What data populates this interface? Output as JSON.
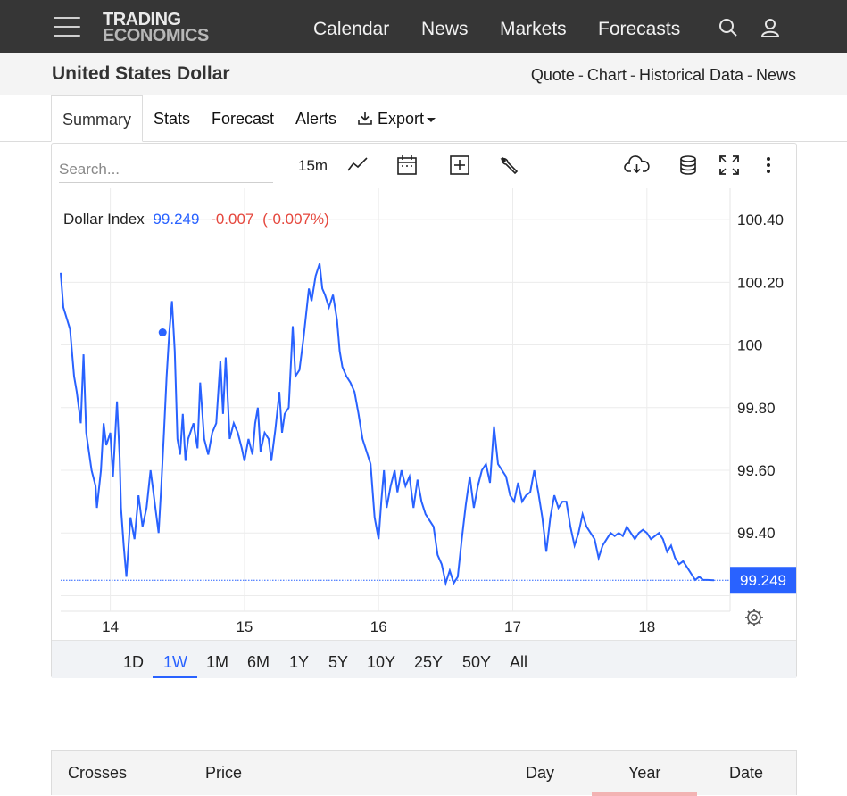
{
  "nav": {
    "logo_line1": "TRADING",
    "logo_line2": "ECONOMICS",
    "links": [
      "Calendar",
      "News",
      "Markets",
      "Forecasts"
    ]
  },
  "header": {
    "title": "United States Dollar",
    "links": [
      "Quote",
      "Chart",
      "Historical Data",
      "News"
    ],
    "separator": "-"
  },
  "tabs": {
    "summary": "Summary",
    "stats": "Stats",
    "forecast": "Forecast",
    "alerts": "Alerts",
    "export": "Export"
  },
  "toolbar": {
    "search_placeholder": "Search...",
    "interval": "15m"
  },
  "chart_data": {
    "type": "line",
    "series_name": "Dollar Index",
    "last_value": "99.249",
    "change": "-0.007",
    "change_pct": "(-0.007%)",
    "line_color": "#2962ff",
    "change_color": "#e5473d",
    "ylim": [
      99.15,
      100.5
    ],
    "yticks": [
      99.4,
      99.6,
      99.8,
      100,
      100.2,
      100.4
    ],
    "ytick_labels": [
      "99.40",
      "99.60",
      "99.80",
      "100",
      "100.20",
      "100.40"
    ],
    "xticks": [
      14,
      15,
      16,
      17,
      18
    ],
    "xtick_labels": [
      "14",
      "15",
      "16",
      "17",
      "18"
    ],
    "xlim": [
      13.63,
      18.62
    ],
    "grid": true,
    "points": [
      [
        13.63,
        100.23
      ],
      [
        13.65,
        100.12
      ],
      [
        13.7,
        100.05
      ],
      [
        13.73,
        99.9
      ],
      [
        13.75,
        99.85
      ],
      [
        13.78,
        99.75
      ],
      [
        13.8,
        99.97
      ],
      [
        13.82,
        99.72
      ],
      [
        13.86,
        99.6
      ],
      [
        13.89,
        99.55
      ],
      [
        13.9,
        99.48
      ],
      [
        13.93,
        99.6
      ],
      [
        13.95,
        99.75
      ],
      [
        13.97,
        99.68
      ],
      [
        14.0,
        99.72
      ],
      [
        14.02,
        99.58
      ],
      [
        14.05,
        99.82
      ],
      [
        14.07,
        99.64
      ],
      [
        14.08,
        99.48
      ],
      [
        14.1,
        99.36
      ],
      [
        14.12,
        99.26
      ],
      [
        14.15,
        99.45
      ],
      [
        14.18,
        99.38
      ],
      [
        14.21,
        99.52
      ],
      [
        14.24,
        99.42
      ],
      [
        14.27,
        99.48
      ],
      [
        14.3,
        99.6
      ],
      [
        14.33,
        99.5
      ],
      [
        14.36,
        99.4
      ],
      [
        14.38,
        99.55
      ],
      [
        14.4,
        99.72
      ],
      [
        14.42,
        99.9
      ],
      [
        14.44,
        100.04
      ],
      [
        14.46,
        100.14
      ],
      [
        14.48,
        99.98
      ],
      [
        14.5,
        99.7
      ],
      [
        14.52,
        99.65
      ],
      [
        14.54,
        99.78
      ],
      [
        14.56,
        99.63
      ],
      [
        14.58,
        99.7
      ],
      [
        14.62,
        99.75
      ],
      [
        14.65,
        99.67
      ],
      [
        14.67,
        99.88
      ],
      [
        14.7,
        99.7
      ],
      [
        14.73,
        99.65
      ],
      [
        14.76,
        99.72
      ],
      [
        14.79,
        99.75
      ],
      [
        14.82,
        99.95
      ],
      [
        14.84,
        99.78
      ],
      [
        14.86,
        99.96
      ],
      [
        14.89,
        99.7
      ],
      [
        14.92,
        99.75
      ],
      [
        14.95,
        99.72
      ],
      [
        14.98,
        99.67
      ],
      [
        15.0,
        99.63
      ],
      [
        15.03,
        99.7
      ],
      [
        15.06,
        99.65
      ],
      [
        15.08,
        99.75
      ],
      [
        15.1,
        99.8
      ],
      [
        15.12,
        99.66
      ],
      [
        15.15,
        99.72
      ],
      [
        15.18,
        99.7
      ],
      [
        15.2,
        99.63
      ],
      [
        15.23,
        99.73
      ],
      [
        15.26,
        99.85
      ],
      [
        15.28,
        99.72
      ],
      [
        15.3,
        99.78
      ],
      [
        15.33,
        99.8
      ],
      [
        15.36,
        100.06
      ],
      [
        15.38,
        99.9
      ],
      [
        15.41,
        99.92
      ],
      [
        15.44,
        100.02
      ],
      [
        15.48,
        100.18
      ],
      [
        15.5,
        100.14
      ],
      [
        15.53,
        100.22
      ],
      [
        15.56,
        100.26
      ],
      [
        15.58,
        100.18
      ],
      [
        15.6,
        100.16
      ],
      [
        15.63,
        100.12
      ],
      [
        15.66,
        100.16
      ],
      [
        15.69,
        100.08
      ],
      [
        15.71,
        99.98
      ],
      [
        15.73,
        99.93
      ],
      [
        15.76,
        99.9
      ],
      [
        15.79,
        99.88
      ],
      [
        15.82,
        99.85
      ],
      [
        15.85,
        99.78
      ],
      [
        15.88,
        99.7
      ],
      [
        15.91,
        99.66
      ],
      [
        15.94,
        99.62
      ],
      [
        15.97,
        99.45
      ],
      [
        16.0,
        99.38
      ],
      [
        16.02,
        99.5
      ],
      [
        16.04,
        99.6
      ],
      [
        16.06,
        99.48
      ],
      [
        16.09,
        99.55
      ],
      [
        16.12,
        99.6
      ],
      [
        16.14,
        99.53
      ],
      [
        16.17,
        99.6
      ],
      [
        16.2,
        99.55
      ],
      [
        16.23,
        99.58
      ],
      [
        16.26,
        99.48
      ],
      [
        16.29,
        99.57
      ],
      [
        16.32,
        99.5
      ],
      [
        16.35,
        99.46
      ],
      [
        16.38,
        99.44
      ],
      [
        16.41,
        99.42
      ],
      [
        16.44,
        99.33
      ],
      [
        16.47,
        99.3
      ],
      [
        16.5,
        99.24
      ],
      [
        16.53,
        99.28
      ],
      [
        16.56,
        99.24
      ],
      [
        16.59,
        99.26
      ],
      [
        16.62,
        99.38
      ],
      [
        16.65,
        99.49
      ],
      [
        16.68,
        99.58
      ],
      [
        16.71,
        99.48
      ],
      [
        16.74,
        99.55
      ],
      [
        16.77,
        99.6
      ],
      [
        16.8,
        99.62
      ],
      [
        16.83,
        99.56
      ],
      [
        16.86,
        99.74
      ],
      [
        16.89,
        99.62
      ],
      [
        16.92,
        99.6
      ],
      [
        16.95,
        99.58
      ],
      [
        16.98,
        99.52
      ],
      [
        17.01,
        99.5
      ],
      [
        17.04,
        99.56
      ],
      [
        17.07,
        99.5
      ],
      [
        17.1,
        99.52
      ],
      [
        17.13,
        99.53
      ],
      [
        17.16,
        99.6
      ],
      [
        17.19,
        99.53
      ],
      [
        17.22,
        99.45
      ],
      [
        17.25,
        99.34
      ],
      [
        17.28,
        99.45
      ],
      [
        17.31,
        99.52
      ],
      [
        17.34,
        99.48
      ],
      [
        17.37,
        99.5
      ],
      [
        17.4,
        99.5
      ],
      [
        17.43,
        99.42
      ],
      [
        17.46,
        99.36
      ],
      [
        17.49,
        99.4
      ],
      [
        17.52,
        99.46
      ],
      [
        17.55,
        99.42
      ],
      [
        17.58,
        99.4
      ],
      [
        17.61,
        99.38
      ],
      [
        17.64,
        99.32
      ],
      [
        17.67,
        99.36
      ],
      [
        17.7,
        99.38
      ],
      [
        17.73,
        99.4
      ],
      [
        17.76,
        99.39
      ],
      [
        17.79,
        99.4
      ],
      [
        17.82,
        99.39
      ],
      [
        17.85,
        99.42
      ],
      [
        17.88,
        99.4
      ],
      [
        17.91,
        99.38
      ],
      [
        17.94,
        99.4
      ],
      [
        17.97,
        99.41
      ],
      [
        18.0,
        99.4
      ],
      [
        18.03,
        99.38
      ],
      [
        18.06,
        99.39
      ],
      [
        18.09,
        99.4
      ],
      [
        18.12,
        99.38
      ],
      [
        18.15,
        99.34
      ],
      [
        18.18,
        99.36
      ],
      [
        18.21,
        99.32
      ],
      [
        18.24,
        99.3
      ],
      [
        18.27,
        99.31
      ],
      [
        18.3,
        99.29
      ],
      [
        18.33,
        99.27
      ],
      [
        18.36,
        99.25
      ],
      [
        18.39,
        99.26
      ],
      [
        18.42,
        99.25
      ],
      [
        18.45,
        99.25
      ],
      [
        18.5,
        99.249
      ]
    ]
  },
  "ranges": [
    "1D",
    "1W",
    "1M",
    "6M",
    "1Y",
    "5Y",
    "10Y",
    "25Y",
    "50Y",
    "All"
  ],
  "active_range": "1W",
  "crosses": {
    "headers": [
      "Crosses",
      "Price",
      "Day",
      "Year",
      "Date"
    ]
  }
}
